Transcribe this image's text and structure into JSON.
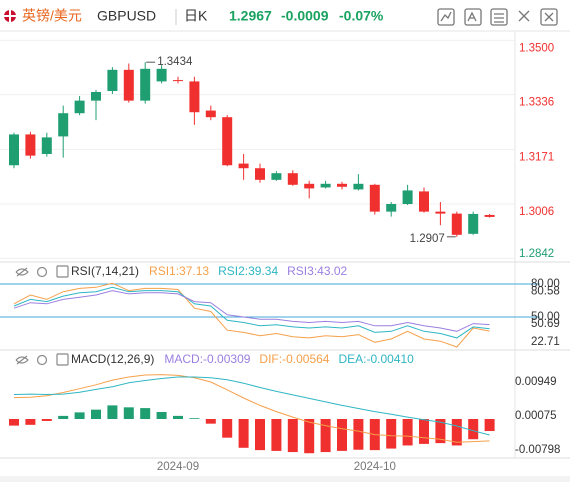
{
  "header": {
    "name": "英镑/美元",
    "symbol": "GBPUSD",
    "period": "日K",
    "price": "1.2967",
    "change": "-0.0009",
    "change_pct": "-0.07%"
  },
  "chart_data": [
    {
      "type": "candlestick",
      "categories": [
        null,
        null,
        null,
        null,
        null,
        null,
        null,
        null,
        null,
        null,
        "2024-09",
        null,
        null,
        null,
        null,
        null,
        null,
        null,
        null,
        null,
        null,
        null,
        "2024-10",
        null,
        null,
        null,
        null,
        null,
        null,
        null
      ],
      "open": [
        1.3123,
        1.3216,
        1.3157,
        1.321,
        1.328,
        1.3318,
        1.3347,
        1.3411,
        1.3318,
        1.3376,
        1.338,
        1.3376,
        1.3288,
        1.3268,
        1.3128,
        1.3114,
        1.3079,
        1.3099,
        1.3067,
        1.3056,
        1.3067,
        1.305,
        1.3064,
        1.2983,
        1.3006,
        1.3044,
        1.2983,
        1.2977,
        1.2916,
        1.2973
      ],
      "high": [
        1.3221,
        1.3224,
        1.3221,
        1.3303,
        1.3332,
        1.335,
        1.3419,
        1.343,
        1.3434,
        1.3425,
        1.339,
        1.339,
        1.3303,
        1.3274,
        1.3157,
        1.3128,
        1.3105,
        1.3108,
        1.3076,
        1.3076,
        1.3073,
        1.3096,
        1.3067,
        1.3012,
        1.3064,
        1.3056,
        1.3012,
        1.2983,
        1.2983,
        1.2976
      ],
      "low": [
        1.3114,
        1.3143,
        1.3149,
        1.3146,
        1.3274,
        1.3259,
        1.3338,
        1.3312,
        1.3309,
        1.337,
        1.337,
        1.3245,
        1.3259,
        1.312,
        1.3079,
        1.307,
        1.3076,
        1.3061,
        1.3023,
        1.3053,
        1.305,
        1.3047,
        1.2974,
        1.2968,
        1.3003,
        1.298,
        1.2942,
        1.2907,
        1.2913,
        1.2965
      ],
      "close": [
        1.3216,
        1.3152,
        1.3207,
        1.328,
        1.3318,
        1.3344,
        1.3411,
        1.3318,
        1.3414,
        1.3414,
        1.3378,
        1.3283,
        1.3268,
        1.3123,
        1.3114,
        1.3079,
        1.3099,
        1.3064,
        1.3053,
        1.3067,
        1.3058,
        1.3067,
        1.2983,
        1.3006,
        1.3047,
        1.2983,
        1.2977,
        1.2913,
        1.2976,
        1.2967
      ],
      "up_color": "#1f9e72",
      "down_color": "#f0302f",
      "ylim": [
        1.2831,
        1.3507
      ],
      "yticks": [
        {
          "value": 1.35,
          "label": "1.3500"
        },
        1.3336,
        1.3171,
        1.3006,
        1.2842
      ],
      "grid": true,
      "annotations": [
        1.3434,
        1.2907
      ]
    },
    {
      "type": "line",
      "title": "RSI(7,14,21)",
      "series": [
        {
          "name": "RSI1:37.13",
          "color": "#f5a04a",
          "values": [
            62,
            70,
            66,
            73,
            76,
            77,
            80.58,
            74,
            76,
            76,
            75,
            58,
            55,
            38,
            36,
            33,
            35,
            32,
            31,
            33,
            32,
            34,
            27,
            30,
            37,
            30,
            28,
            22.71,
            40,
            37.13
          ]
        },
        {
          "name": "RSI2:39.34",
          "color": "#2fb6c4",
          "values": [
            60,
            66,
            64,
            69,
            72,
            73,
            77,
            73,
            74,
            74,
            73,
            62,
            60,
            47,
            45,
            42,
            43,
            41,
            40,
            41,
            40,
            42,
            36,
            37,
            42,
            37,
            35,
            31,
            41,
            39.34
          ]
        },
        {
          "name": "RSI3:43.02",
          "color": "#9b7fe0",
          "values": [
            58,
            63,
            62,
            66,
            68,
            70,
            74,
            71,
            72,
            72,
            71,
            64,
            63,
            52,
            50,
            48,
            48,
            46,
            45,
            46,
            45,
            46,
            42,
            42,
            45,
            42,
            40,
            37,
            44,
            43.02
          ]
        }
      ],
      "ylim": [
        21.8,
        84.5
      ],
      "yticks": [
        80.58,
        50.69,
        22.71
      ],
      "ref_lines": [
        {
          "value": 80,
          "label": "80.00"
        },
        {
          "value": 50,
          "label": "50.00"
        }
      ],
      "ref_color": "#3fa9d8"
    },
    {
      "type": "macd",
      "title": "MACD(12,26,9)",
      "series": [
        {
          "name": "MACD:-0.00309",
          "color": "#9b7fe0",
          "style": "bar",
          "values": [
            -0.0017,
            -0.0015,
            -0.0005,
            0.0008,
            0.0017,
            0.0024,
            0.0035,
            0.003,
            0.0028,
            0.0018,
            0.0008,
            0.0002,
            -0.0012,
            -0.0048,
            -0.0074,
            -0.008,
            -0.0082,
            -0.0085,
            -0.0088,
            -0.0085,
            -0.0082,
            -0.0079,
            -0.008,
            -0.0076,
            -0.0068,
            -0.0064,
            -0.0062,
            -0.0068,
            -0.0052,
            -0.00309
          ]
        },
        {
          "name": "DIF:-0.00564",
          "color": "#f5a04a",
          "style": "line",
          "values": [
            0.0055,
            0.0056,
            0.006,
            0.0068,
            0.0078,
            0.0088,
            0.01,
            0.0108,
            0.0113,
            0.0114,
            0.0112,
            0.0106,
            0.0095,
            0.0075,
            0.0054,
            0.0035,
            0.0019,
            0.0005,
            -0.0008,
            -0.0017,
            -0.0025,
            -0.0031,
            -0.004,
            -0.0043,
            -0.0044,
            -0.0048,
            -0.0052,
            -0.006,
            -0.0058,
            -0.00564
          ]
        },
        {
          "name": "DEA:-0.00410",
          "color": "#2fb6c4",
          "style": "line",
          "values": [
            0.0063,
            0.0064,
            0.0063,
            0.0064,
            0.0069,
            0.0076,
            0.0083,
            0.0093,
            0.0099,
            0.0104,
            0.0108,
            0.0108,
            0.0106,
            0.0101,
            0.0092,
            0.0081,
            0.0071,
            0.0062,
            0.0053,
            0.0044,
            0.0035,
            0.0027,
            0.0019,
            0.0012,
            0.0005,
            -0.0002,
            -0.0008,
            -0.0018,
            -0.003,
            -0.0041
          ]
        }
      ],
      "up_color": "#1f9e72",
      "down_color": "#f0302f",
      "ylim": [
        -0.00951,
        0.01208
      ],
      "yticks": [
        0.00949,
        0.00075,
        -0.00798
      ]
    }
  ]
}
